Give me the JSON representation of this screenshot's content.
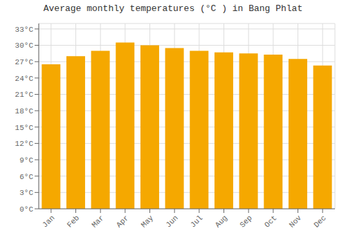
{
  "chart_data": {
    "type": "bar",
    "title": "Average monthly temperatures (°C ) in Bang Phlat",
    "categories": [
      "Jan",
      "Feb",
      "Mar",
      "Apr",
      "May",
      "Jun",
      "Jul",
      "Aug",
      "Sep",
      "Oct",
      "Nov",
      "Dec"
    ],
    "values": [
      26.5,
      28.0,
      29.0,
      30.5,
      30.0,
      29.5,
      29.0,
      28.7,
      28.5,
      28.3,
      27.5,
      26.3
    ],
    "color": "#F5A800",
    "ylim": [
      0,
      34
    ],
    "yticks": [
      {
        "value": 0,
        "label": "0°C"
      },
      {
        "value": 3,
        "label": "3°C"
      },
      {
        "value": 6,
        "label": "6°C"
      },
      {
        "value": 9,
        "label": "9°C"
      },
      {
        "value": 12,
        "label": "12°C"
      },
      {
        "value": 15,
        "label": "15°C"
      },
      {
        "value": 18,
        "label": "18°C"
      },
      {
        "value": 21,
        "label": "21°C"
      },
      {
        "value": 24,
        "label": "24°C"
      },
      {
        "value": 27,
        "label": "27°C"
      },
      {
        "value": 30,
        "label": "30°C"
      },
      {
        "value": 33,
        "label": "33°C"
      }
    ],
    "grid": true
  }
}
